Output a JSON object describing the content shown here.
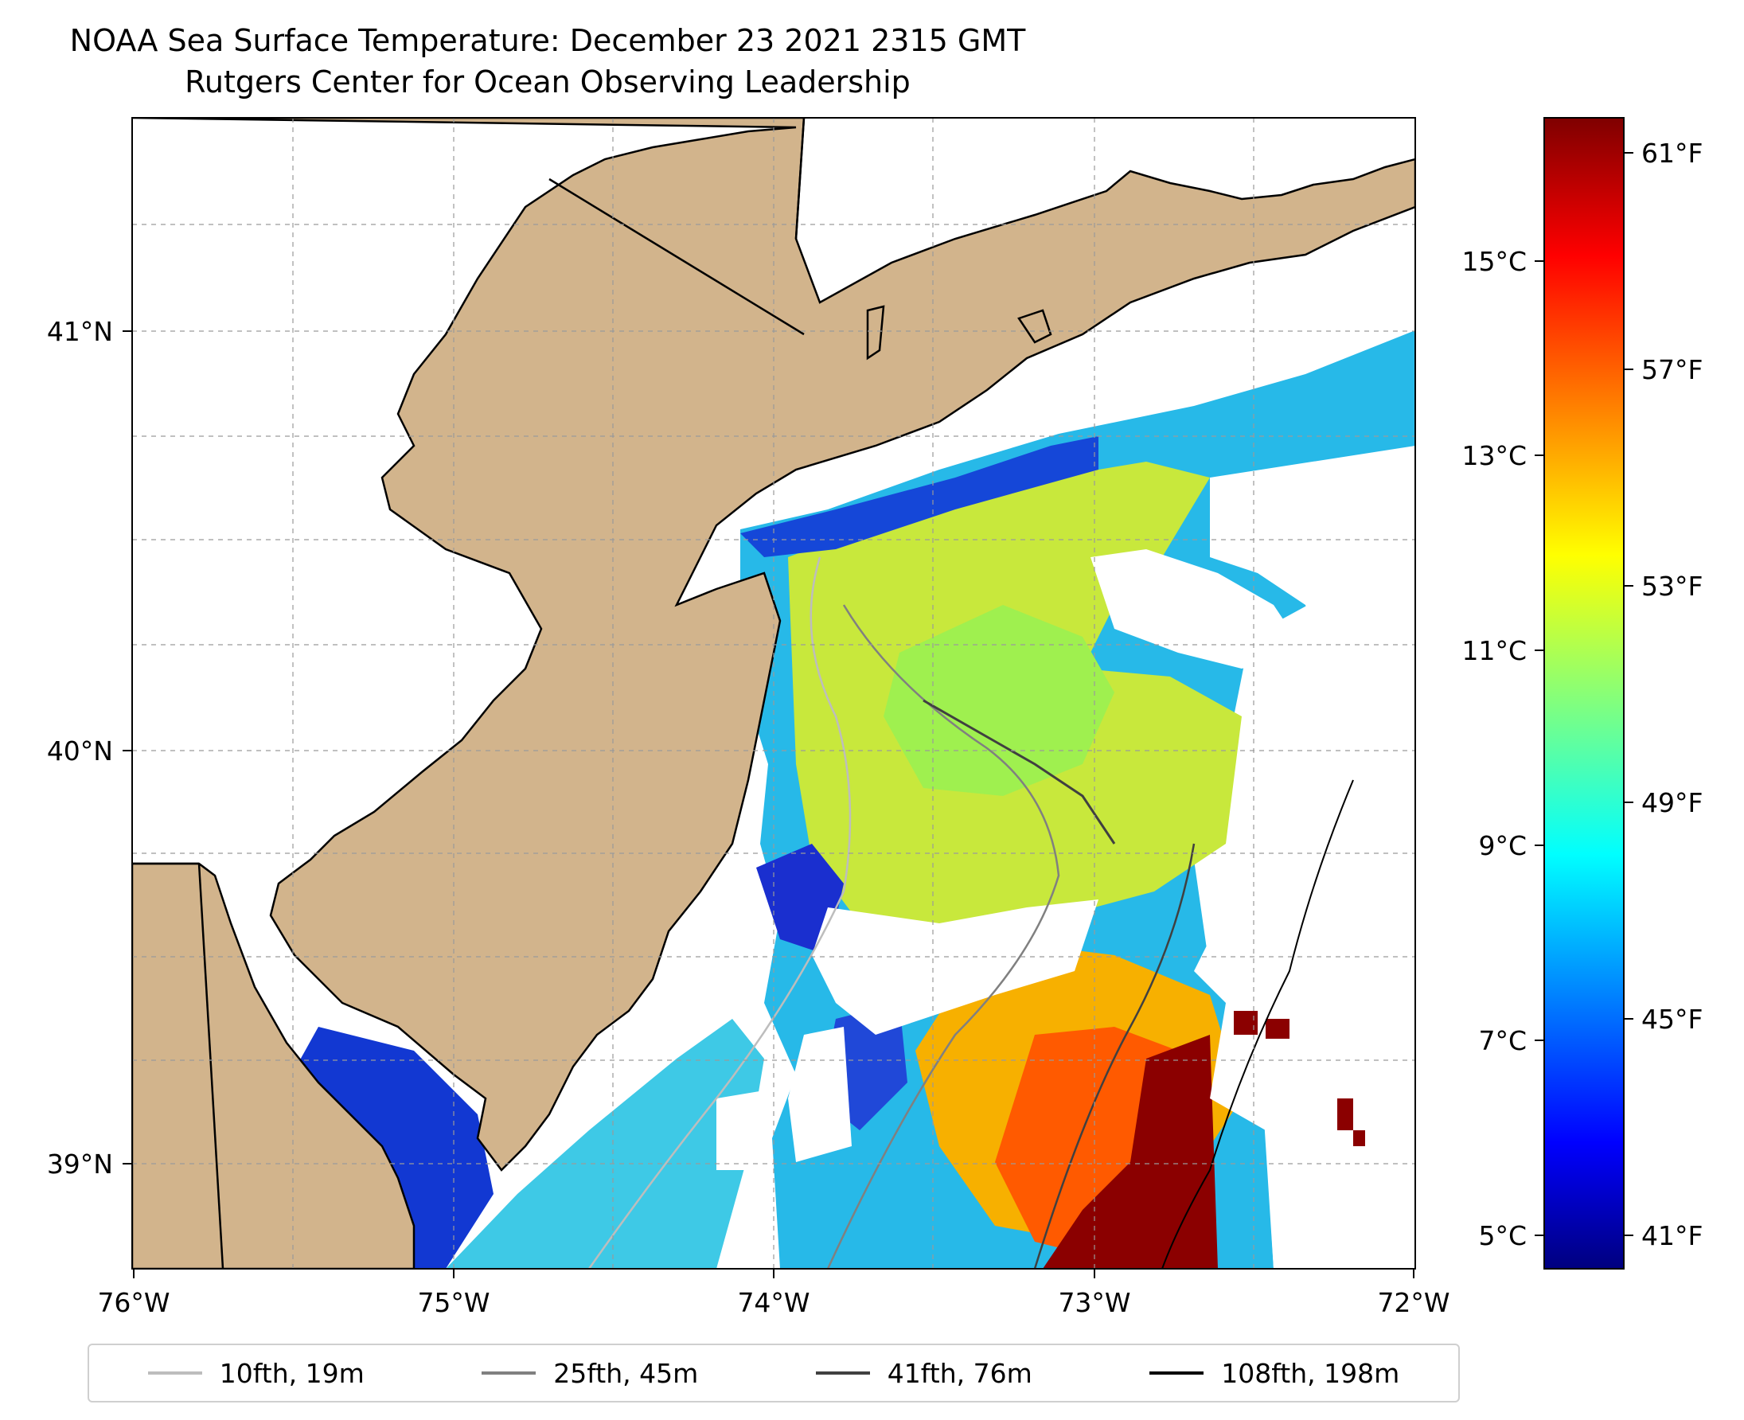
{
  "title": {
    "line1": "NOAA Sea Surface Temperature: December 23 2021 2315 GMT",
    "line2": "Rutgers Center for Ocean Observing Leadership"
  },
  "map": {
    "extent": {
      "lon": [
        -76,
        -72
      ],
      "lat": [
        38.75,
        41.5
      ]
    },
    "land_color": "#d2b48c",
    "no_data_color": "#ffffff",
    "lon_ticks": [
      "76°W",
      "75°W",
      "74°W",
      "73°W",
      "72°W"
    ],
    "lat_ticks": [
      "41°N",
      "40°N",
      "39°N"
    ],
    "gridlines": true
  },
  "colorbar": {
    "colormap": "jet",
    "celsius_ticks": [
      "15°C",
      "13°C",
      "11°C",
      "9°C",
      "7°C",
      "5°C"
    ],
    "fahrenheit_ticks": [
      "61°F",
      "57°F",
      "53°F",
      "49°F",
      "45°F",
      "41°F"
    ],
    "range_c": [
      4.7,
      16.6
    ]
  },
  "legend": [
    {
      "label": "10fth, 19m",
      "color": "#bdbdbd"
    },
    {
      "label": "25fth, 45m",
      "color": "#808080"
    },
    {
      "label": "41fth, 76m",
      "color": "#404040"
    },
    {
      "label": "108fth, 198m",
      "color": "#000000"
    }
  ]
}
